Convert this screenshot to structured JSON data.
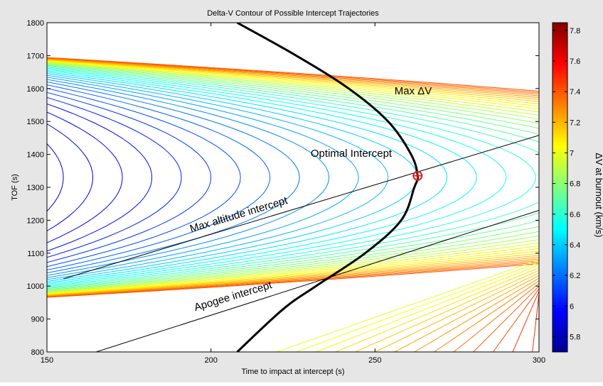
{
  "chart_data": {
    "type": "contour",
    "title": "Delta-V Contour of Possible Intercept Trajectories",
    "xlabel": "Time to impact at intercept (s)",
    "ylabel": "TOF (s)",
    "xlim": [
      150,
      300
    ],
    "ylim": [
      800,
      1800
    ],
    "xticks": [
      150,
      200,
      250,
      300
    ],
    "yticks": [
      800,
      900,
      1000,
      1100,
      1200,
      1300,
      1400,
      1500,
      1600,
      1700,
      1800
    ],
    "colorbar": {
      "label": "ΔV at burnout (km/s)",
      "range": [
        5.7,
        7.85
      ],
      "ticks": [
        "5.8",
        "6",
        "6.2",
        "6.4",
        "6.6",
        "6.8",
        "7",
        "7.2",
        "7.4",
        "7.6",
        "7.8"
      ]
    },
    "max_dv_curve": {
      "label": "Max ΔV",
      "points": [
        [
          208,
          1800
        ],
        [
          226,
          1700
        ],
        [
          242,
          1600
        ],
        [
          254,
          1500
        ],
        [
          261,
          1400
        ],
        [
          263,
          1335
        ],
        [
          262,
          1300
        ],
        [
          258,
          1200
        ],
        [
          247,
          1100
        ],
        [
          232,
          1000
        ],
        [
          222,
          930
        ],
        [
          208,
          800
        ]
      ]
    },
    "lines": [
      {
        "label": "Max altitude intercept",
        "from": [
          155,
          1022
        ],
        "to": [
          300,
          1458
        ]
      },
      {
        "label": "Apogee intercept",
        "from": [
          165,
          800
        ],
        "to": [
          300,
          1230
        ]
      }
    ],
    "optimal_point": {
      "label": "Optimal Intercept",
      "x": 263,
      "y": 1335
    },
    "grid": false,
    "legend": "none"
  }
}
